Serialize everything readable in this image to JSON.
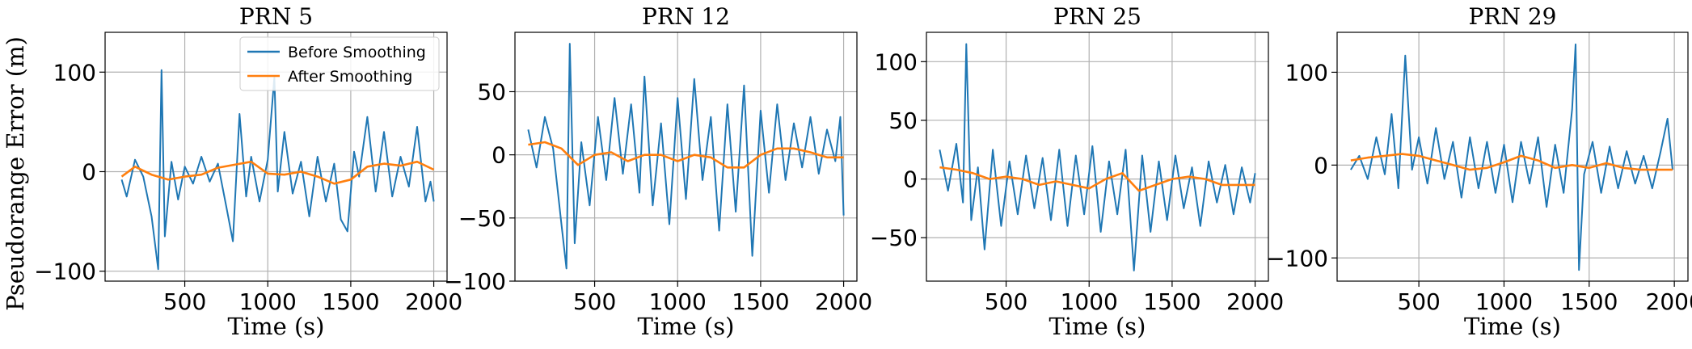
{
  "figure": {
    "ylabel": "Pseudorange Error (m)"
  },
  "colors": {
    "before": "#1f77b4",
    "after": "#ff7f0e",
    "grid": "#b0b0b0",
    "axis": "#000000"
  },
  "legend": {
    "placement": "top-right (first panel)",
    "items": [
      {
        "label": "Before Smoothing",
        "color": "#1f77b4"
      },
      {
        "label": "After Smoothing",
        "color": "#ff7f0e"
      }
    ]
  },
  "chart_data": [
    {
      "type": "line",
      "title": "PRN 5",
      "xlabel": "Time (s)",
      "ylabel": "Pseudorange Error (m)",
      "xlim": [
        20,
        2080
      ],
      "ylim": [
        -110,
        140
      ],
      "xticks": [
        500,
        1000,
        1500,
        2000
      ],
      "yticks": [
        -100,
        0,
        100
      ],
      "grid": true,
      "series": [
        {
          "name": "Before Smoothing",
          "points": [
            [
              120,
              -8
            ],
            [
              150,
              -25
            ],
            [
              200,
              12
            ],
            [
              250,
              -5
            ],
            [
              300,
              -45
            ],
            [
              340,
              -98
            ],
            [
              360,
              102
            ],
            [
              380,
              -65
            ],
            [
              420,
              10
            ],
            [
              460,
              -28
            ],
            [
              500,
              5
            ],
            [
              550,
              -12
            ],
            [
              600,
              15
            ],
            [
              650,
              -10
            ],
            [
              700,
              8
            ],
            [
              750,
              -35
            ],
            [
              790,
              -70
            ],
            [
              830,
              58
            ],
            [
              870,
              -25
            ],
            [
              900,
              15
            ],
            [
              950,
              -30
            ],
            [
              1000,
              12
            ],
            [
              1040,
              95
            ],
            [
              1060,
              -20
            ],
            [
              1100,
              40
            ],
            [
              1150,
              -22
            ],
            [
              1200,
              10
            ],
            [
              1250,
              -45
            ],
            [
              1300,
              15
            ],
            [
              1350,
              -30
            ],
            [
              1400,
              8
            ],
            [
              1440,
              -48
            ],
            [
              1480,
              -60
            ],
            [
              1520,
              20
            ],
            [
              1550,
              -5
            ],
            [
              1600,
              55
            ],
            [
              1650,
              -20
            ],
            [
              1700,
              40
            ],
            [
              1750,
              -25
            ],
            [
              1800,
              15
            ],
            [
              1850,
              -15
            ],
            [
              1900,
              45
            ],
            [
              1950,
              -30
            ],
            [
              1980,
              -10
            ],
            [
              2000,
              -30
            ]
          ]
        },
        {
          "name": "After Smoothing",
          "points": [
            [
              120,
              -5
            ],
            [
              200,
              5
            ],
            [
              300,
              -3
            ],
            [
              400,
              -8
            ],
            [
              500,
              -5
            ],
            [
              600,
              -3
            ],
            [
              700,
              4
            ],
            [
              800,
              7
            ],
            [
              900,
              10
            ],
            [
              1000,
              -2
            ],
            [
              1100,
              -3
            ],
            [
              1200,
              0
            ],
            [
              1300,
              -5
            ],
            [
              1400,
              -12
            ],
            [
              1500,
              -8
            ],
            [
              1600,
              5
            ],
            [
              1700,
              8
            ],
            [
              1800,
              6
            ],
            [
              1900,
              10
            ],
            [
              2000,
              2
            ]
          ]
        }
      ]
    },
    {
      "type": "line",
      "title": "PRN 12",
      "xlabel": "Time (s)",
      "ylabel": "",
      "xlim": [
        20,
        2080
      ],
      "ylim": [
        -100,
        97
      ],
      "xticks": [
        500,
        1000,
        1500,
        2000
      ],
      "yticks": [
        -100,
        -50,
        0,
        50
      ],
      "grid": true,
      "series": [
        {
          "name": "Before Smoothing",
          "points": [
            [
              100,
              20
            ],
            [
              150,
              -10
            ],
            [
              200,
              30
            ],
            [
              250,
              5
            ],
            [
              300,
              -55
            ],
            [
              330,
              -90
            ],
            [
              350,
              88
            ],
            [
              380,
              -70
            ],
            [
              420,
              10
            ],
            [
              470,
              -40
            ],
            [
              520,
              30
            ],
            [
              570,
              -20
            ],
            [
              620,
              45
            ],
            [
              670,
              -15
            ],
            [
              720,
              40
            ],
            [
              770,
              -30
            ],
            [
              800,
              62
            ],
            [
              850,
              -40
            ],
            [
              900,
              25
            ],
            [
              950,
              -55
            ],
            [
              1000,
              45
            ],
            [
              1050,
              -35
            ],
            [
              1100,
              60
            ],
            [
              1150,
              -20
            ],
            [
              1200,
              30
            ],
            [
              1250,
              -60
            ],
            [
              1300,
              40
            ],
            [
              1350,
              -45
            ],
            [
              1400,
              55
            ],
            [
              1450,
              -80
            ],
            [
              1500,
              35
            ],
            [
              1550,
              -30
            ],
            [
              1600,
              40
            ],
            [
              1650,
              -20
            ],
            [
              1700,
              25
            ],
            [
              1750,
              -10
            ],
            [
              1800,
              30
            ],
            [
              1850,
              -15
            ],
            [
              1900,
              20
            ],
            [
              1950,
              -5
            ],
            [
              1980,
              30
            ],
            [
              2000,
              -48
            ]
          ]
        },
        {
          "name": "After Smoothing",
          "points": [
            [
              100,
              8
            ],
            [
              200,
              10
            ],
            [
              300,
              5
            ],
            [
              400,
              -8
            ],
            [
              500,
              0
            ],
            [
              600,
              2
            ],
            [
              700,
              -5
            ],
            [
              800,
              0
            ],
            [
              900,
              0
            ],
            [
              1000,
              -5
            ],
            [
              1100,
              0
            ],
            [
              1200,
              -2
            ],
            [
              1300,
              -10
            ],
            [
              1400,
              -10
            ],
            [
              1500,
              0
            ],
            [
              1600,
              5
            ],
            [
              1700,
              5
            ],
            [
              1800,
              2
            ],
            [
              1900,
              -2
            ],
            [
              2000,
              -2
            ]
          ]
        }
      ]
    },
    {
      "type": "line",
      "title": "PRN 25",
      "xlabel": "Time (s)",
      "ylabel": "",
      "xlim": [
        20,
        2080
      ],
      "ylim": [
        -87,
        125
      ],
      "xticks": [
        500,
        1000,
        1500,
        2000
      ],
      "yticks": [
        -50,
        0,
        50,
        100
      ],
      "grid": true,
      "series": [
        {
          "name": "Before Smoothing",
          "points": [
            [
              100,
              25
            ],
            [
              150,
              -10
            ],
            [
              200,
              30
            ],
            [
              240,
              -20
            ],
            [
              260,
              115
            ],
            [
              290,
              -35
            ],
            [
              330,
              10
            ],
            [
              370,
              -60
            ],
            [
              420,
              25
            ],
            [
              470,
              -40
            ],
            [
              520,
              15
            ],
            [
              570,
              -30
            ],
            [
              620,
              20
            ],
            [
              670,
              -25
            ],
            [
              720,
              18
            ],
            [
              770,
              -35
            ],
            [
              820,
              25
            ],
            [
              870,
              -40
            ],
            [
              920,
              20
            ],
            [
              970,
              -30
            ],
            [
              1020,
              28
            ],
            [
              1070,
              -45
            ],
            [
              1120,
              15
            ],
            [
              1170,
              -30
            ],
            [
              1220,
              25
            ],
            [
              1270,
              -78
            ],
            [
              1320,
              20
            ],
            [
              1370,
              -45
            ],
            [
              1420,
              15
            ],
            [
              1470,
              -35
            ],
            [
              1520,
              20
            ],
            [
              1570,
              -25
            ],
            [
              1620,
              10
            ],
            [
              1670,
              -40
            ],
            [
              1720,
              15
            ],
            [
              1770,
              -20
            ],
            [
              1820,
              12
            ],
            [
              1870,
              -30
            ],
            [
              1920,
              10
            ],
            [
              1970,
              -20
            ],
            [
              2000,
              5
            ]
          ]
        },
        {
          "name": "After Smoothing",
          "points": [
            [
              100,
              10
            ],
            [
              200,
              8
            ],
            [
              300,
              5
            ],
            [
              400,
              0
            ],
            [
              500,
              2
            ],
            [
              600,
              0
            ],
            [
              700,
              -5
            ],
            [
              800,
              -2
            ],
            [
              900,
              -5
            ],
            [
              1000,
              -8
            ],
            [
              1100,
              0
            ],
            [
              1200,
              5
            ],
            [
              1300,
              -10
            ],
            [
              1400,
              -5
            ],
            [
              1500,
              0
            ],
            [
              1600,
              2
            ],
            [
              1700,
              0
            ],
            [
              1800,
              -5
            ],
            [
              1900,
              -5
            ],
            [
              2000,
              -5
            ]
          ]
        }
      ]
    },
    {
      "type": "line",
      "title": "PRN 29",
      "xlabel": "Time (s)",
      "ylabel": "",
      "xlim": [
        20,
        2080
      ],
      "ylim": [
        -125,
        143
      ],
      "xticks": [
        500,
        1000,
        1500,
        2000
      ],
      "yticks": [
        -100,
        0,
        100
      ],
      "grid": true,
      "series": [
        {
          "name": "Before Smoothing",
          "points": [
            [
              100,
              -5
            ],
            [
              150,
              10
            ],
            [
              200,
              -15
            ],
            [
              250,
              30
            ],
            [
              300,
              -10
            ],
            [
              340,
              55
            ],
            [
              380,
              -25
            ],
            [
              420,
              118
            ],
            [
              460,
              -5
            ],
            [
              500,
              30
            ],
            [
              550,
              -20
            ],
            [
              600,
              40
            ],
            [
              650,
              -15
            ],
            [
              700,
              25
            ],
            [
              750,
              -35
            ],
            [
              800,
              30
            ],
            [
              850,
              -25
            ],
            [
              900,
              25
            ],
            [
              950,
              -30
            ],
            [
              1000,
              22
            ],
            [
              1050,
              -40
            ],
            [
              1100,
              25
            ],
            [
              1150,
              -20
            ],
            [
              1200,
              30
            ],
            [
              1250,
              -45
            ],
            [
              1300,
              22
            ],
            [
              1350,
              -30
            ],
            [
              1400,
              60
            ],
            [
              1420,
              130
            ],
            [
              1440,
              -113
            ],
            [
              1470,
              -10
            ],
            [
              1520,
              25
            ],
            [
              1570,
              -30
            ],
            [
              1620,
              20
            ],
            [
              1670,
              -25
            ],
            [
              1720,
              15
            ],
            [
              1770,
              -20
            ],
            [
              1820,
              10
            ],
            [
              1870,
              -25
            ],
            [
              1920,
              15
            ],
            [
              1960,
              50
            ],
            [
              1990,
              -5
            ]
          ]
        },
        {
          "name": "After Smoothing",
          "points": [
            [
              100,
              5
            ],
            [
              200,
              8
            ],
            [
              300,
              10
            ],
            [
              400,
              12
            ],
            [
              500,
              10
            ],
            [
              600,
              5
            ],
            [
              700,
              0
            ],
            [
              800,
              -5
            ],
            [
              900,
              -3
            ],
            [
              1000,
              3
            ],
            [
              1100,
              10
            ],
            [
              1200,
              5
            ],
            [
              1300,
              -3
            ],
            [
              1400,
              0
            ],
            [
              1500,
              -3
            ],
            [
              1600,
              2
            ],
            [
              1700,
              -3
            ],
            [
              1800,
              -5
            ],
            [
              1900,
              -5
            ],
            [
              1990,
              -5
            ]
          ]
        }
      ]
    }
  ]
}
